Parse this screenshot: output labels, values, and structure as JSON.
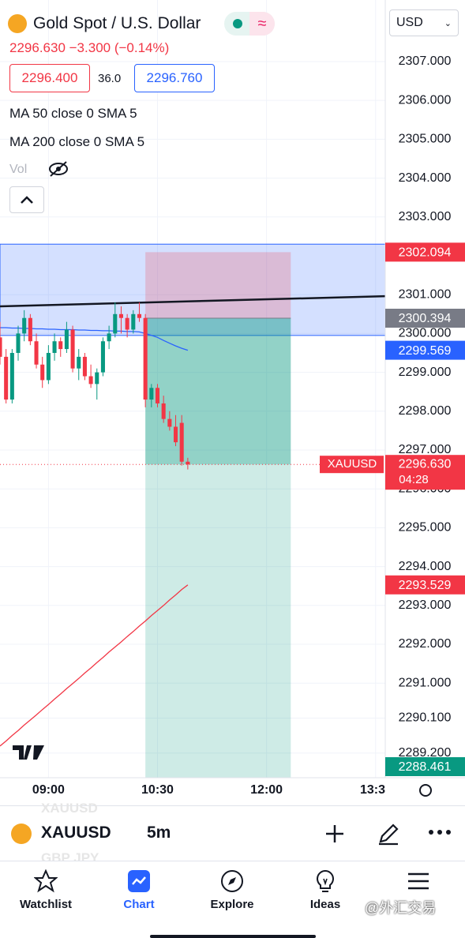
{
  "header": {
    "title": "Gold Spot / U.S. Dollar",
    "quote": "2296.630 −3.300 (−0.14%)",
    "currency": "USD",
    "bid": "2296.400",
    "spread": "36.0",
    "ask": "2296.760",
    "indicators": [
      "MA 50 close 0 SMA 5",
      "MA 200 close 0 SMA 5",
      "Vol"
    ]
  },
  "chart_data": {
    "type": "candlestick",
    "symbol_label": "XAUUSD",
    "countdown": "04:28",
    "x": [
      "08:20",
      "08:25",
      "08:30",
      "08:35",
      "08:40",
      "08:45",
      "08:50",
      "08:55",
      "09:00",
      "09:05",
      "09:10",
      "09:15",
      "09:20",
      "09:25",
      "09:30",
      "09:35",
      "09:40",
      "09:45",
      "09:50",
      "09:55",
      "10:00",
      "10:05",
      "10:10",
      "10:15",
      "10:20",
      "10:25",
      "10:30",
      "10:35",
      "10:40",
      "10:45",
      "10:50",
      "10:55"
    ],
    "open": [
      2299.9,
      2299.4,
      2298.3,
      2299.5,
      2300.0,
      2300.4,
      2299.8,
      2299.2,
      2298.8,
      2299.5,
      2299.8,
      2299.6,
      2300.1,
      2299.1,
      2299.4,
      2298.9,
      2298.7,
      2299.0,
      2299.8,
      2300.0,
      2300.5,
      2300.4,
      2300.1,
      2300.5,
      2300.4,
      2298.3,
      2298.6,
      2298.2,
      2297.8,
      2297.6,
      2297.7,
      2296.7
    ],
    "high": [
      2300.3,
      2299.6,
      2299.6,
      2300.2,
      2300.6,
      2300.5,
      2300.0,
      2299.4,
      2299.7,
      2300.0,
      2299.9,
      2300.3,
      2300.2,
      2299.6,
      2299.5,
      2299.2,
      2299.1,
      2299.9,
      2300.2,
      2300.8,
      2300.7,
      2300.5,
      2300.6,
      2300.8,
      2300.5,
      2298.7,
      2298.7,
      2298.4,
      2298.0,
      2297.9,
      2297.9,
      2296.8
    ],
    "low": [
      2299.2,
      2298.2,
      2298.2,
      2299.3,
      2299.8,
      2299.7,
      2299.1,
      2298.6,
      2298.7,
      2299.3,
      2299.4,
      2299.5,
      2299.0,
      2298.8,
      2298.8,
      2298.6,
      2298.3,
      2298.9,
      2299.6,
      2299.9,
      2300.0,
      2299.9,
      2300.0,
      2300.3,
      2298.1,
      2298.1,
      2298.1,
      2297.7,
      2297.5,
      2297.1,
      2296.6,
      2296.5
    ],
    "close": [
      2299.4,
      2298.3,
      2299.5,
      2300.0,
      2300.4,
      2299.8,
      2299.2,
      2298.8,
      2299.5,
      2299.8,
      2299.6,
      2300.1,
      2299.1,
      2299.4,
      2298.9,
      2298.7,
      2299.0,
      2299.8,
      2300.0,
      2300.5,
      2300.4,
      2300.1,
      2300.5,
      2300.4,
      2298.3,
      2298.6,
      2298.2,
      2297.8,
      2297.6,
      2297.2,
      2296.7,
      2296.63
    ],
    "up_color": "#089981",
    "down_color": "#f23645",
    "ma50": {
      "color": "#2962ff",
      "values": [
        2300.15,
        2300.15,
        2300.14,
        2300.14,
        2300.13,
        2300.13,
        2300.12,
        2300.12,
        2300.11,
        2300.11,
        2300.1,
        2300.1,
        2300.1,
        2300.09,
        2300.09,
        2300.08,
        2300.08,
        2300.07,
        2300.07,
        2300.06,
        2300.06,
        2300.05,
        2300.05,
        2300.04,
        2300.0,
        2299.95,
        2299.9,
        2299.82,
        2299.75,
        2299.68,
        2299.62,
        2299.569
      ]
    },
    "ma200": {
      "color": "#f23645",
      "values": [
        2289.38,
        2289.51,
        2289.65,
        2289.78,
        2289.92,
        2290.05,
        2290.18,
        2290.32,
        2290.45,
        2290.59,
        2290.72,
        2290.86,
        2290.99,
        2291.12,
        2291.26,
        2291.39,
        2291.53,
        2291.66,
        2291.8,
        2291.93,
        2292.06,
        2292.2,
        2292.33,
        2292.47,
        2292.6,
        2292.74,
        2292.87,
        2293.0,
        2293.14,
        2293.27,
        2293.41,
        2293.529
      ]
    },
    "xlim": [
      "08:20",
      "13:38"
    ],
    "xticks": [
      "09:00",
      "10:30",
      "12:00",
      {
        "value": "13:30",
        "label": "13:3"
      }
    ],
    "ylim": [
      2288.565,
      2308.585
    ],
    "yticks": [
      {
        "value": 2307,
        "label": "2307.000"
      },
      {
        "value": 2306,
        "label": "2306.000"
      },
      {
        "value": 2305,
        "label": "2305.000"
      },
      {
        "value": 2304,
        "label": "2304.000"
      },
      {
        "value": 2303,
        "label": "2303.000"
      },
      {
        "value": 2301,
        "label": "2301.000"
      },
      {
        "value": 2300,
        "label": "2300.000"
      },
      {
        "value": 2299,
        "label": "2299.000"
      },
      {
        "value": 2298,
        "label": "2298.000"
      },
      {
        "value": 2297,
        "label": "2297.000"
      },
      {
        "value": 2296,
        "label": "2296.000"
      },
      {
        "value": 2295,
        "label": "2295.000"
      },
      {
        "value": 2294,
        "label": "2294.000"
      },
      {
        "value": 2293,
        "label": "2293.000"
      },
      {
        "value": 2292,
        "label": "2292.000"
      },
      {
        "value": 2291,
        "label": "2291.000"
      },
      {
        "value": 2290.1,
        "label": "2290.100"
      },
      {
        "value": 2289.2,
        "label": "2289.200"
      }
    ],
    "zone": {
      "low": 2299.95,
      "high": 2302.3
    },
    "position": {
      "start": "10:20",
      "end": "12:20",
      "entry": 2300.394,
      "stop": 2302.094,
      "target": 2288.461
    },
    "trend_line": {
      "x": [
        "08:20",
        "13:38"
      ],
      "values": [
        2300.7,
        2300.96
      ]
    },
    "last_price": {
      "value": 2296.63,
      "label": "2296.630"
    },
    "grid": true
  },
  "toolbar": {
    "symbol": "XAUUSD",
    "interval": "5m",
    "ghost_prev": "XAUUSD",
    "ghost_next": "GBP JPY"
  },
  "nav": [
    "Watchlist",
    "Chart",
    "Explore",
    "Ideas"
  ],
  "watermark": "@外汇交易"
}
